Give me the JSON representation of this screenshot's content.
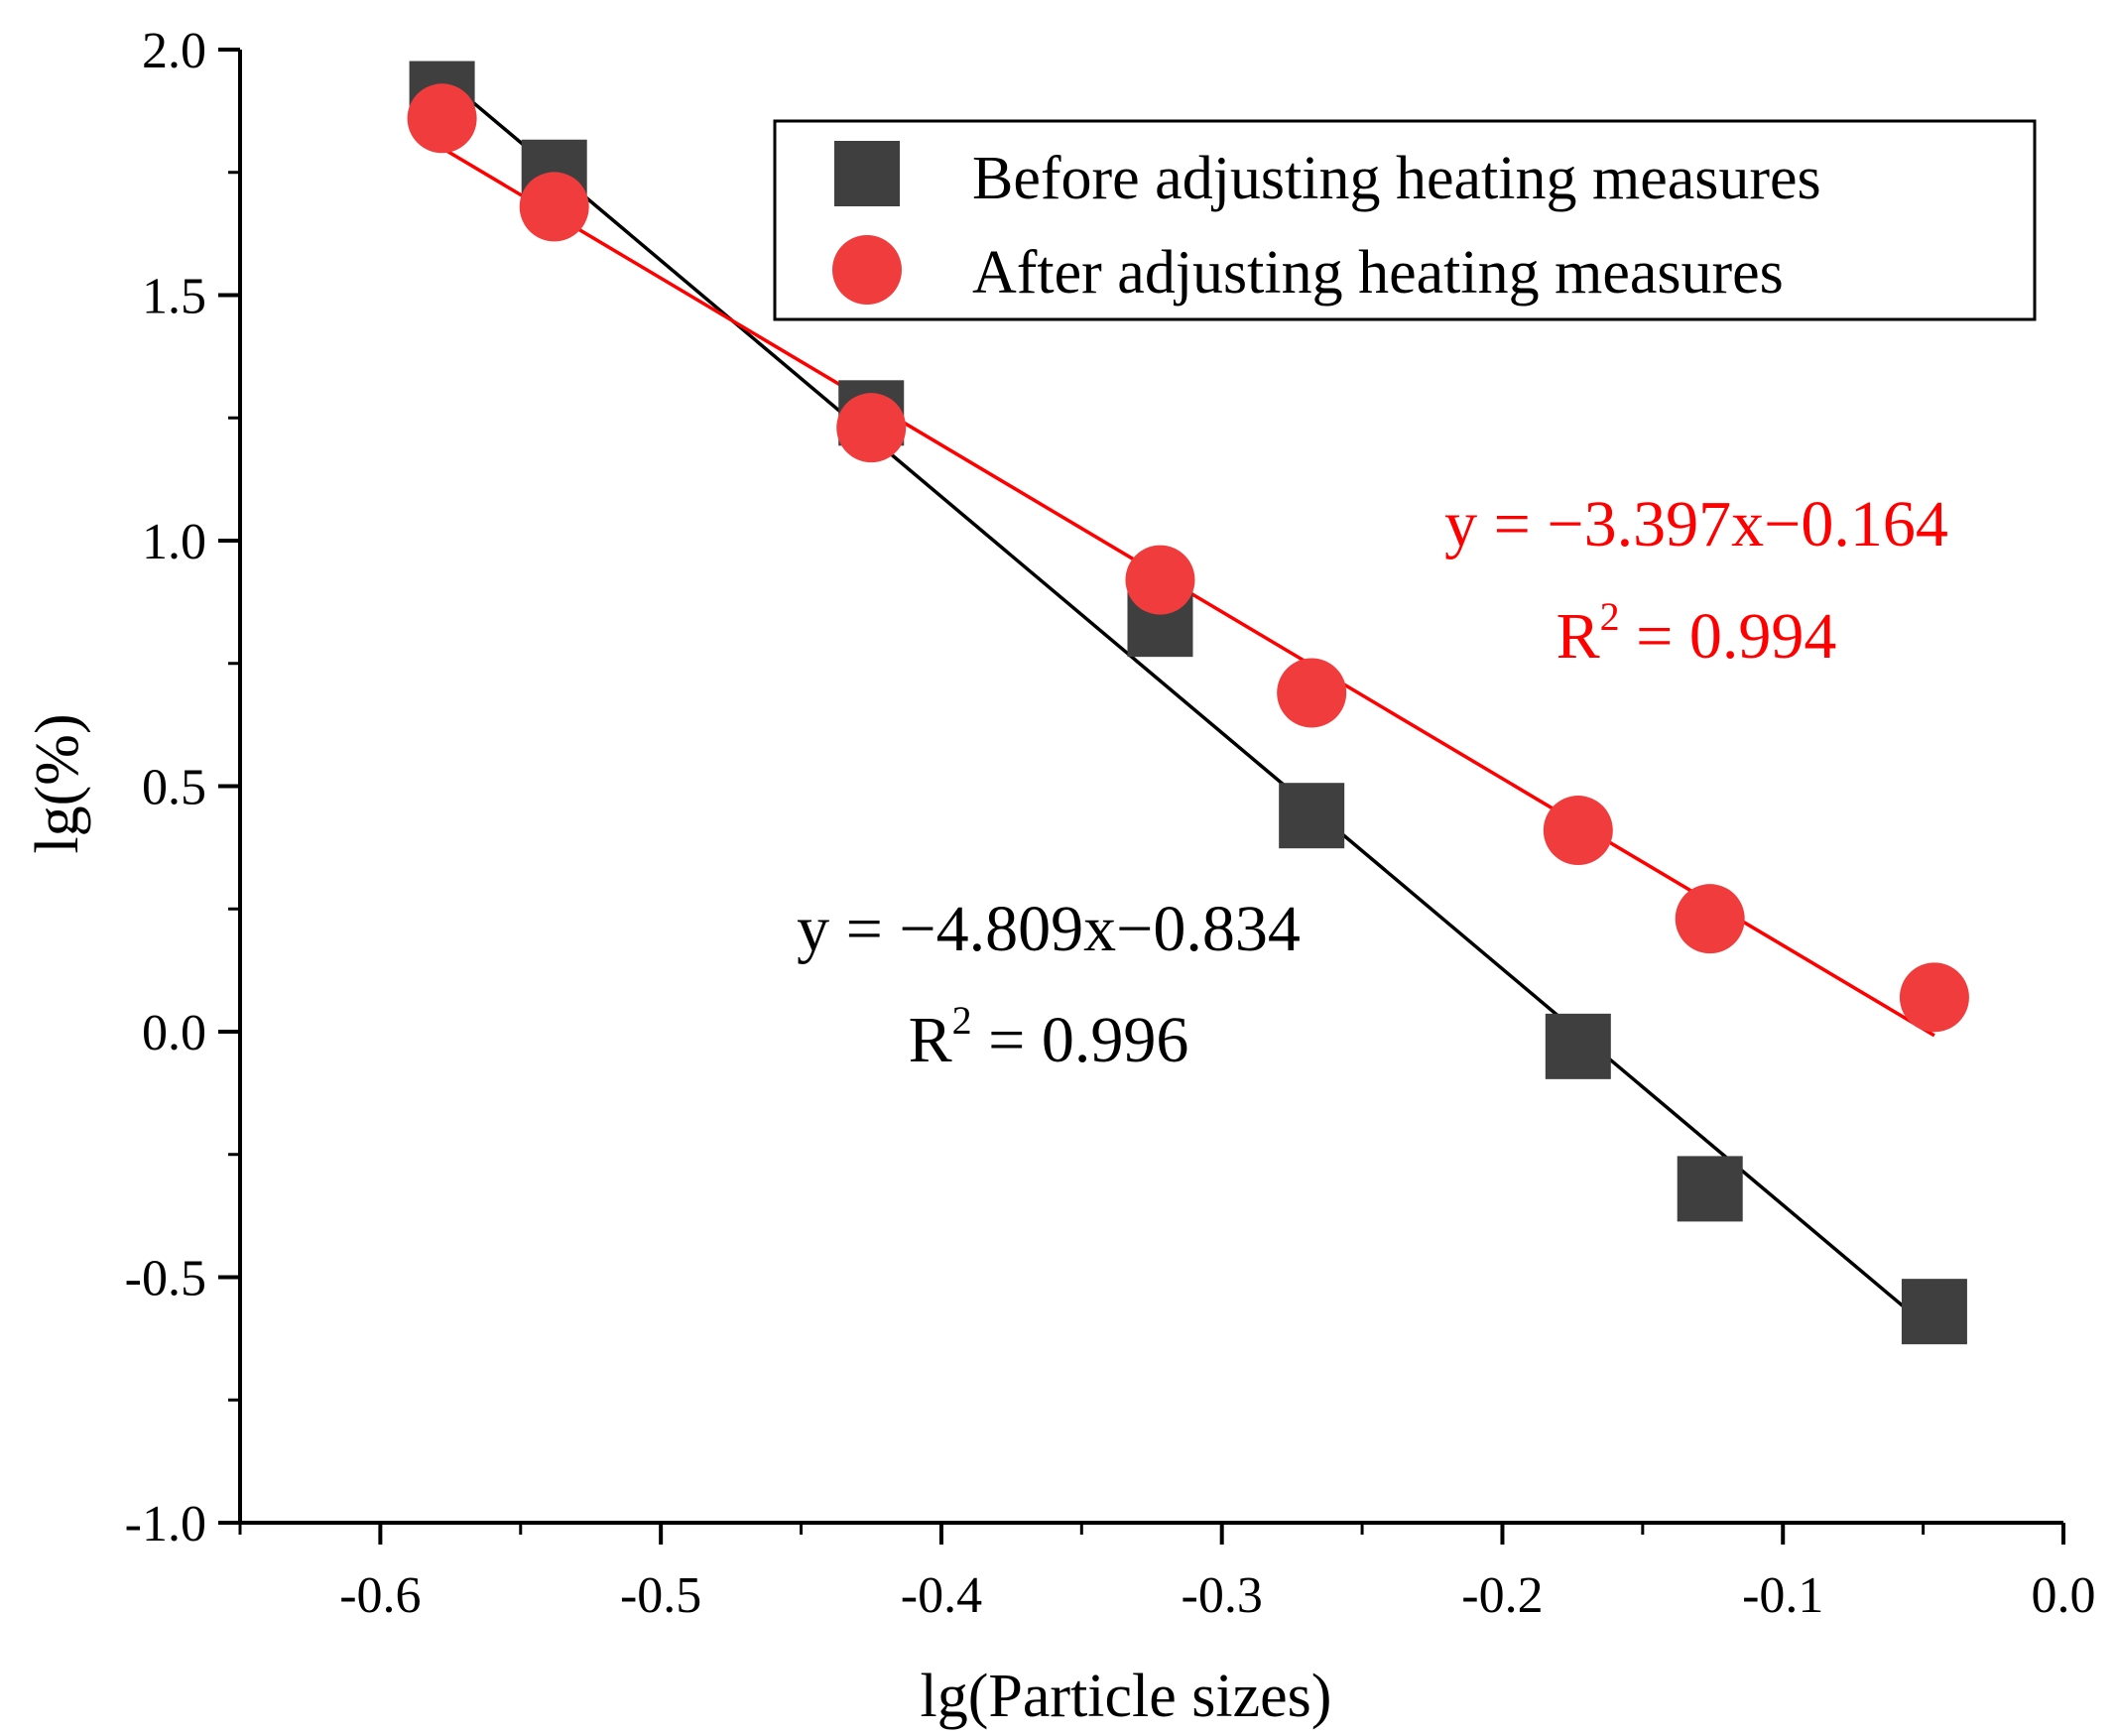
{
  "chart_data": {
    "type": "scatter",
    "title": "",
    "xlabel": "lg(Particle sizes)",
    "ylabel": "lg(%)",
    "xlim": [
      -0.65,
      0.0
    ],
    "ylim": [
      -1.0,
      2.0
    ],
    "x_ticks": [
      -0.6,
      -0.5,
      -0.4,
      -0.3,
      -0.2,
      -0.1,
      0.0
    ],
    "x_tick_labels": [
      "-0.6",
      "-0.5",
      "-0.4",
      "-0.3",
      "-0.2",
      "-0.1",
      "0.0"
    ],
    "y_ticks": [
      -1.0,
      -0.5,
      0.0,
      0.5,
      1.0,
      1.5,
      2.0
    ],
    "y_tick_labels": [
      "-1.0",
      "-0.5",
      "0.0",
      "0.5",
      "1.0",
      "1.5",
      "2.0"
    ],
    "legend_position": "top-right",
    "series": [
      {
        "name": "Before adjusting heating measures",
        "marker": "square",
        "color": "#3f3f3f",
        "x": [
          -0.578,
          -0.538,
          -0.425,
          -0.322,
          -0.268,
          -0.173,
          -0.126,
          -0.046
        ],
        "y": [
          1.91,
          1.75,
          1.26,
          0.83,
          0.44,
          -0.03,
          -0.32,
          -0.57
        ],
        "fit": {
          "slope": -4.809,
          "intercept": -0.834,
          "x_range": [
            -0.578,
            -0.046
          ],
          "color": "#000000",
          "equation_text": "y = −4.809x−0.834",
          "r2_prefix": "R",
          "r2_sup": "2",
          "r2_value": " = 0.996"
        }
      },
      {
        "name": "After adjusting heating measures",
        "marker": "circle",
        "color": "#f03c3c",
        "x": [
          -0.578,
          -0.538,
          -0.425,
          -0.322,
          -0.268,
          -0.173,
          -0.126,
          -0.046
        ],
        "y": [
          1.86,
          1.68,
          1.23,
          0.92,
          0.69,
          0.41,
          0.23,
          0.07
        ],
        "fit": {
          "slope": -3.397,
          "intercept": -0.164,
          "x_range": [
            -0.578,
            -0.046
          ],
          "color": "#ff0000",
          "equation_text": "y = −3.397x−0.164",
          "r2_prefix": "R",
          "r2_sup": "2",
          "r2_value": " = 0.994"
        }
      }
    ]
  }
}
